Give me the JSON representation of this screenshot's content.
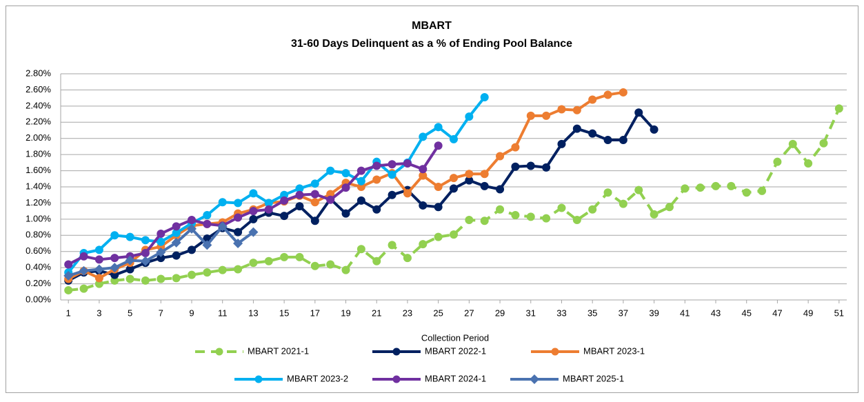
{
  "chart_data": {
    "type": "line",
    "title": "MBART",
    "subtitle": "31-60 Days Delinquent as a % of Ending Pool Balance",
    "xlabel": "Collection Period",
    "x": [
      1,
      2,
      3,
      4,
      5,
      6,
      7,
      8,
      9,
      10,
      11,
      12,
      13,
      14,
      15,
      16,
      17,
      18,
      19,
      20,
      21,
      22,
      23,
      24,
      25,
      26,
      27,
      28,
      29,
      30,
      31,
      32,
      33,
      34,
      35,
      36,
      37,
      38,
      39,
      40,
      41,
      42,
      43,
      44,
      45,
      46,
      47,
      48,
      49,
      50,
      51
    ],
    "xlim": [
      0.5,
      51.5
    ],
    "xticks": [
      1,
      3,
      5,
      7,
      9,
      11,
      13,
      15,
      17,
      19,
      21,
      23,
      25,
      27,
      29,
      31,
      33,
      35,
      37,
      39,
      41,
      43,
      45,
      47,
      49,
      51
    ],
    "ylim": [
      0,
      2.8
    ],
    "yticks": [
      {
        "value": 0,
        "label": "0.00%"
      },
      {
        "value": 0.2,
        "label": "0.20%"
      },
      {
        "value": 0.4,
        "label": "0.40%"
      },
      {
        "value": 0.6,
        "label": "0.60%"
      },
      {
        "value": 0.8,
        "label": "0.80%"
      },
      {
        "value": 1.0,
        "label": "1.00%"
      },
      {
        "value": 1.2,
        "label": "1.20%"
      },
      {
        "value": 1.4,
        "label": "1.40%"
      },
      {
        "value": 1.6,
        "label": "1.60%"
      },
      {
        "value": 1.8,
        "label": "1.80%"
      },
      {
        "value": 2.0,
        "label": "2.00%"
      },
      {
        "value": 2.2,
        "label": "2.20%"
      },
      {
        "value": 2.4,
        "label": "2.40%"
      },
      {
        "value": 2.6,
        "label": "2.60%"
      },
      {
        "value": 2.8,
        "label": "2.80%"
      }
    ],
    "grid": true,
    "legend": "bottom",
    "series": [
      {
        "name": "MBART 2021-1",
        "color": "#92d050",
        "dashed": true,
        "marker": "circle",
        "values": [
          0.12,
          0.14,
          0.2,
          0.24,
          0.26,
          0.24,
          0.26,
          0.27,
          0.31,
          0.34,
          0.37,
          0.38,
          0.46,
          0.48,
          0.53,
          0.53,
          0.42,
          0.44,
          0.37,
          0.63,
          0.48,
          0.68,
          0.52,
          0.69,
          0.78,
          0.81,
          0.99,
          0.98,
          1.12,
          1.05,
          1.03,
          1.01,
          1.14,
          0.99,
          1.12,
          1.33,
          1.19,
          1.36,
          1.06,
          1.15,
          1.38,
          1.39,
          1.41,
          1.41,
          1.33,
          1.35,
          1.71,
          1.93,
          1.69,
          1.94,
          2.37
        ]
      },
      {
        "name": "MBART 2022-1",
        "color": "#002060",
        "marker": "circle",
        "values": [
          0.24,
          0.34,
          0.36,
          0.31,
          0.38,
          0.46,
          0.52,
          0.55,
          0.62,
          0.76,
          0.89,
          0.84,
          1.0,
          1.08,
          1.04,
          1.16,
          0.98,
          1.25,
          1.07,
          1.23,
          1.12,
          1.3,
          1.36,
          1.17,
          1.15,
          1.38,
          1.48,
          1.41,
          1.37,
          1.65,
          1.66,
          1.64,
          1.93,
          2.12,
          2.06,
          1.98,
          1.98,
          2.32,
          2.11,
          null,
          null,
          null,
          null,
          null,
          null,
          null,
          null,
          null,
          null,
          null,
          null
        ]
      },
      {
        "name": "MBART 2023-1",
        "color": "#ed7d31",
        "marker": "circle",
        "values": [
          0.26,
          0.36,
          0.27,
          0.38,
          0.46,
          0.62,
          0.66,
          0.8,
          0.92,
          0.94,
          0.96,
          1.07,
          1.12,
          1.2,
          1.22,
          1.29,
          1.21,
          1.31,
          1.45,
          1.4,
          1.49,
          1.57,
          1.32,
          1.54,
          1.4,
          1.51,
          1.56,
          1.56,
          1.78,
          1.89,
          2.28,
          2.28,
          2.36,
          2.35,
          2.48,
          2.54,
          2.57,
          null,
          null,
          null,
          null,
          null,
          null,
          null,
          null,
          null,
          null,
          null,
          null,
          null,
          null
        ]
      },
      {
        "name": "MBART 2023-2",
        "color": "#00b0f0",
        "marker": "circle",
        "values": [
          0.34,
          0.58,
          0.62,
          0.8,
          0.78,
          0.74,
          0.72,
          0.83,
          0.95,
          1.05,
          1.21,
          1.2,
          1.32,
          1.2,
          1.3,
          1.38,
          1.44,
          1.6,
          1.57,
          1.47,
          1.71,
          1.55,
          1.7,
          2.02,
          2.14,
          1.99,
          2.27,
          2.51,
          null,
          null,
          null,
          null,
          null,
          null,
          null,
          null,
          null,
          null,
          null,
          null,
          null,
          null,
          null,
          null,
          null,
          null,
          null,
          null,
          null,
          null,
          null
        ]
      },
      {
        "name": "MBART 2024-1",
        "color": "#7030a0",
        "marker": "circle",
        "values": [
          0.44,
          0.54,
          0.5,
          0.52,
          0.54,
          0.58,
          0.82,
          0.91,
          0.99,
          0.94,
          0.92,
          1.02,
          1.1,
          1.12,
          1.23,
          1.3,
          1.31,
          1.24,
          1.39,
          1.6,
          1.66,
          1.68,
          1.69,
          1.62,
          1.91,
          null,
          null,
          null,
          null,
          null,
          null,
          null,
          null,
          null,
          null,
          null,
          null,
          null,
          null,
          null,
          null,
          null,
          null,
          null,
          null,
          null,
          null,
          null,
          null,
          null,
          null
        ]
      },
      {
        "name": "MBART 2025-1",
        "color": "#4a72b0",
        "marker": "diamond",
        "values": [
          0.3,
          0.36,
          0.38,
          0.4,
          0.49,
          0.48,
          0.59,
          0.71,
          0.88,
          0.68,
          0.91,
          0.7,
          0.84,
          null,
          null,
          null,
          null,
          null,
          null,
          null,
          null,
          null,
          null,
          null,
          null,
          null,
          null,
          null,
          null,
          null,
          null,
          null,
          null,
          null,
          null,
          null,
          null,
          null,
          null,
          null,
          null,
          null,
          null,
          null,
          null,
          null,
          null,
          null,
          null,
          null,
          null
        ]
      }
    ]
  }
}
